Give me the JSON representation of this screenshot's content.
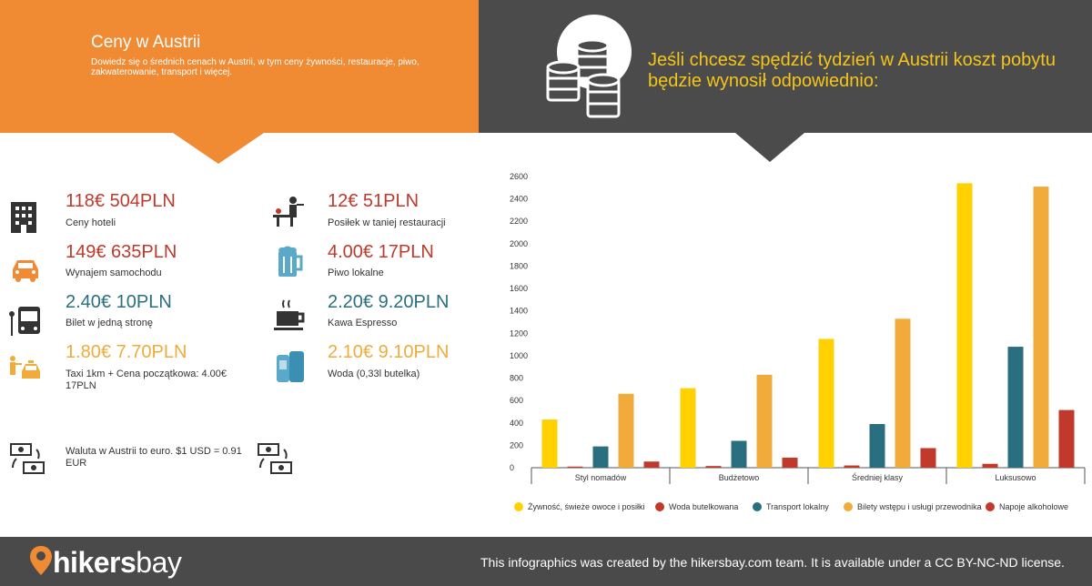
{
  "header": {
    "title": "Ceny w Austrii",
    "subtitle": "Dowiedz się o średnich cenach w Austrii, w tym ceny żywności, restauracje, piwo, zakwaterowanie, transport i więcej.",
    "headline": "Jeśli chcesz spędzić tydzień w Austrii koszt pobytu będzie wynosił odpowiednio:"
  },
  "prices": {
    "hotel": {
      "price": "118€ 504PLN",
      "label": "Ceny hoteli"
    },
    "car": {
      "price": "149€ 635PLN",
      "label": "Wynajem samochodu"
    },
    "bus": {
      "price": "2.40€ 10PLN",
      "label": "Bilet w jedną stronę"
    },
    "taxi": {
      "price": "1.80€ 7.70PLN",
      "label": "Taxi 1km + Cena początkowa: 4.00€ 17PLN"
    },
    "meal": {
      "price": "12€ 51PLN",
      "label": "Posiłek w taniej restauracji"
    },
    "beer": {
      "price": "4.00€ 17PLN",
      "label": "Piwo lokalne"
    },
    "coffee": {
      "price": "2.20€ 9.20PLN",
      "label": "Kawa Espresso"
    },
    "water": {
      "price": "2.10€ 9.10PLN",
      "label": "Woda (0,33l butelka)"
    }
  },
  "currency": {
    "label": "Waluta w Austrii to euro. $1 USD = 0.91 EUR"
  },
  "footer": {
    "logo_part1": "hikers",
    "logo_part2": "bay",
    "credit": "This infographics was created by the hikersbay.com team. It is available under a CC BY-NC-ND license."
  },
  "colors": {
    "orange": "#f08a33",
    "dark": "#4b4b4b",
    "yellow": "#ffd100",
    "red": "#c0392b",
    "teal": "#2a6f80",
    "light_orange": "#f0ab3a",
    "dark_red": "#c0392b"
  },
  "chart_data": {
    "type": "bar",
    "categories": [
      "Styl nomadów",
      "Budżetowo",
      "Średniej klasy",
      "Luksusowo"
    ],
    "ylim": [
      0,
      2600
    ],
    "yticks": [
      0,
      200,
      400,
      600,
      800,
      1000,
      1200,
      1400,
      1600,
      1800,
      2000,
      2200,
      2400,
      2600
    ],
    "grid": false,
    "legend_position": "bottom",
    "series": [
      {
        "name": "Żywność, świeże owoce i posiłki",
        "color": "#ffd100",
        "values": [
          430,
          710,
          1150,
          2540
        ]
      },
      {
        "name": "Woda butelkowana",
        "color": "#c0392b",
        "values": [
          10,
          15,
          20,
          35
        ]
      },
      {
        "name": "Transport lokalny",
        "color": "#2a6f80",
        "values": [
          190,
          240,
          390,
          1080
        ]
      },
      {
        "name": "Bilety wstępu i usługi przewodnika",
        "color": "#f0ab3a",
        "values": [
          660,
          830,
          1330,
          2510
        ]
      },
      {
        "name": "Napoje alkoholowe",
        "color": "#c0392b",
        "values": [
          55,
          90,
          175,
          515
        ]
      }
    ]
  }
}
